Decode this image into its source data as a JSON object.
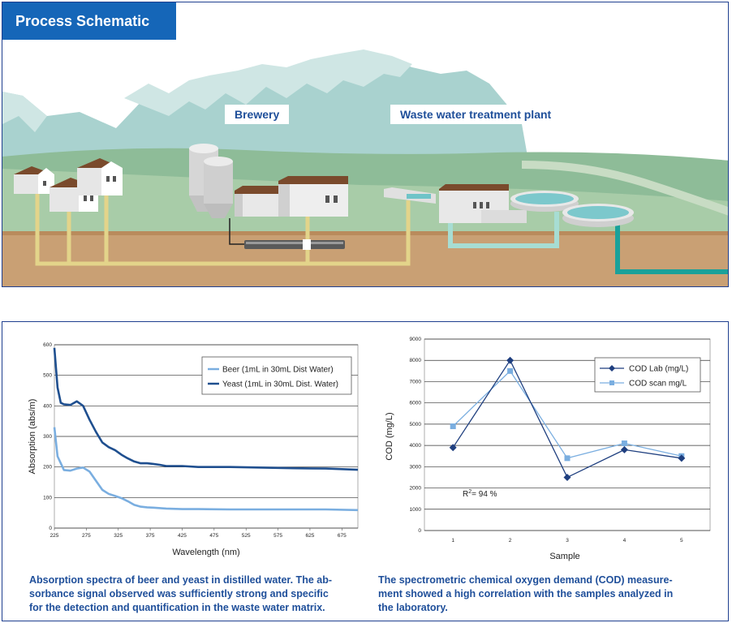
{
  "schematic": {
    "title": "Process Schematic",
    "brewery_label": "Brewery",
    "plant_label": "Waste water treatment plant"
  },
  "colors": {
    "panel_border": "#1f3f8f",
    "title_bg": "#1566b8",
    "caption_text": "#1f4f9a",
    "beer": "#7aaee0",
    "yeast": "#1f4f8f",
    "cod_lab": "#1f3f7f",
    "cod_scan": "#7aaee0"
  },
  "captions": {
    "spectra": [
      "Absorption spectra of beer and yeast in distilled water. The ab-",
      "sorbance signal observed was sufficiently strong and specific",
      "for the detection and quantification in the waste water matrix."
    ],
    "cod": [
      "The spectrometric chemical oxygen demand (COD) measure-",
      "ment showed a high correlation with the samples analyzed in",
      "the laboratory."
    ]
  },
  "chart_data": [
    {
      "type": "line",
      "xlabel": "Wavelength (nm)",
      "ylabel": "Absorption (abs/m)",
      "xlim": [
        225,
        700
      ],
      "ylim": [
        0,
        600
      ],
      "x_ticks": [
        "225",
        "275",
        "325",
        "375",
        "425",
        "475",
        "525",
        "575",
        "625",
        "675"
      ],
      "y_ticks": [
        "0",
        "100",
        "200",
        "300",
        "400",
        "500",
        "600"
      ],
      "grid": "horizontal",
      "legend_position": "top-right",
      "series": [
        {
          "name": "Beer (1mL in 30mL Dist Water)",
          "x": [
            225,
            230,
            240,
            250,
            260,
            270,
            280,
            290,
            300,
            310,
            320,
            330,
            340,
            350,
            360,
            370,
            380,
            400,
            425,
            450,
            500,
            550,
            600,
            650,
            700
          ],
          "y": [
            330,
            235,
            190,
            188,
            195,
            198,
            185,
            155,
            125,
            112,
            105,
            98,
            88,
            76,
            70,
            68,
            67,
            64,
            62,
            62,
            61,
            61,
            61,
            61,
            59
          ]
        },
        {
          "name": "Yeast (1mL in 30mL Dist. Water)",
          "x": [
            225,
            230,
            235,
            240,
            250,
            260,
            270,
            280,
            290,
            300,
            310,
            320,
            330,
            340,
            350,
            360,
            370,
            380,
            390,
            400,
            425,
            450,
            500,
            550,
            600,
            650,
            700
          ],
          "y": [
            590,
            460,
            410,
            405,
            403,
            415,
            400,
            355,
            315,
            280,
            265,
            255,
            240,
            228,
            218,
            212,
            212,
            210,
            207,
            203,
            203,
            200,
            200,
            198,
            196,
            195,
            191
          ]
        }
      ]
    },
    {
      "type": "line",
      "xlabel": "Sample",
      "ylabel": "COD (mg/L)",
      "categories": [
        "1",
        "2",
        "3",
        "4",
        "5"
      ],
      "ylim": [
        0,
        9000
      ],
      "y_ticks": [
        "0",
        "1000",
        "2000",
        "3000",
        "4000",
        "5000",
        "6000",
        "7000",
        "8000",
        "9000"
      ],
      "grid": "horizontal",
      "legend_position": "top-right",
      "annotation": {
        "prefix": "R",
        "sup": "2",
        "suffix": "= 94 %"
      },
      "series": [
        {
          "name": "COD Lab (mg/L)",
          "values": [
            3900,
            8000,
            2500,
            3800,
            3400
          ]
        },
        {
          "name": "COD scan mg/L",
          "values": [
            4900,
            7500,
            3400,
            4100,
            3500
          ]
        }
      ]
    }
  ]
}
